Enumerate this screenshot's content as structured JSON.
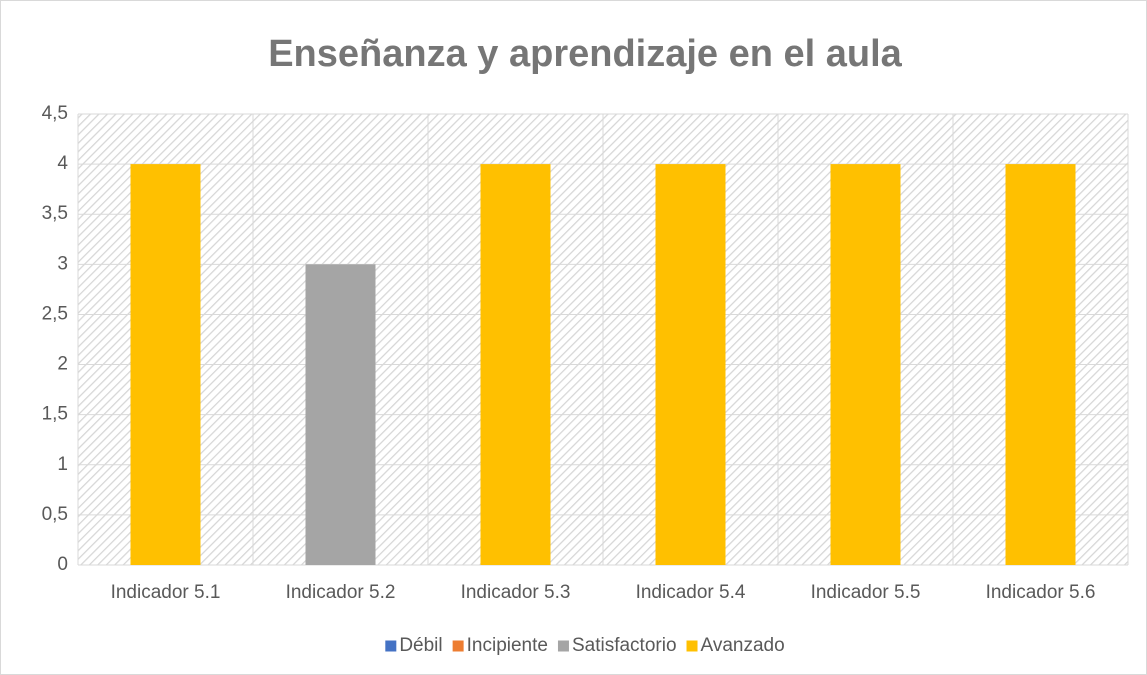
{
  "chart_data": {
    "type": "bar",
    "stacked": true,
    "title": "Enseñanza y aprendizaje en el aula",
    "categories": [
      "Indicador 5.1",
      "Indicador 5.2",
      "Indicador 5.3",
      "Indicador 5.4",
      "Indicador 5.5",
      "Indicador 5.6"
    ],
    "series": [
      {
        "name": "Débil",
        "color": "#4472c4",
        "values": [
          null,
          null,
          null,
          null,
          null,
          null
        ]
      },
      {
        "name": "Incipiente",
        "color": "#ed7d31",
        "values": [
          null,
          null,
          null,
          null,
          null,
          null
        ]
      },
      {
        "name": "Satisfactorio",
        "color": "#a5a5a5",
        "values": [
          null,
          3,
          null,
          null,
          null,
          null
        ]
      },
      {
        "name": "Avanzado",
        "color": "#ffc000",
        "values": [
          4,
          null,
          4,
          4,
          4,
          4
        ]
      }
    ],
    "ylim": [
      0,
      4.5
    ],
    "yticks": [
      0,
      {
        "value": 0.5,
        "label": "0,5"
      },
      1,
      {
        "value": 1.5,
        "label": "1,5"
      },
      2,
      {
        "value": 2.5,
        "label": "2,5"
      },
      3,
      {
        "value": 3.5,
        "label": "3,5"
      },
      4,
      {
        "value": 4.5,
        "label": "4,5"
      }
    ],
    "grid": true,
    "legend": "bottom"
  }
}
